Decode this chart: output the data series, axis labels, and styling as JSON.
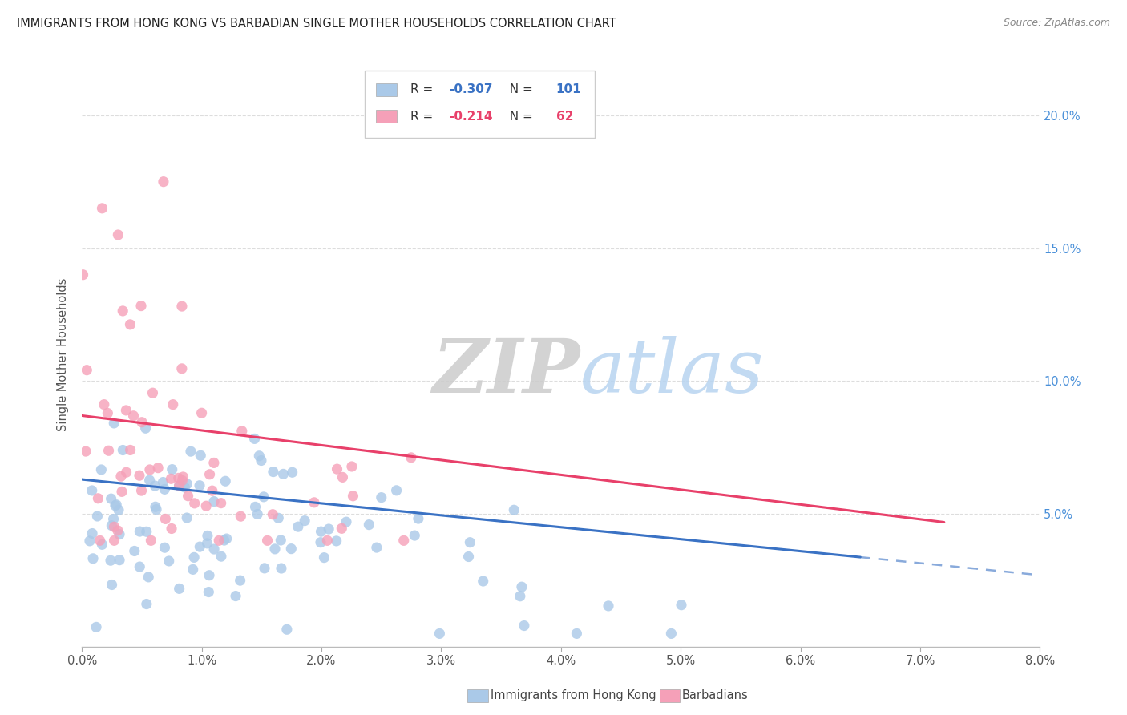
{
  "title": "IMMIGRANTS FROM HONG KONG VS BARBADIAN SINGLE MOTHER HOUSEHOLDS CORRELATION CHART",
  "source": "Source: ZipAtlas.com",
  "ylabel": "Single Mother Households",
  "legend_label1": "Immigrants from Hong Kong",
  "legend_label2": "Barbadians",
  "R1": -0.307,
  "N1": 101,
  "R2": -0.214,
  "N2": 62,
  "color1": "#aac9e8",
  "color2": "#f5a0b8",
  "line_color1": "#3a72c4",
  "line_color2": "#e8406a",
  "ytick_labels": [
    "5.0%",
    "10.0%",
    "15.0%",
    "20.0%"
  ],
  "ytick_values": [
    0.05,
    0.1,
    0.15,
    0.2
  ],
  "xlim": [
    0.0,
    0.08
  ],
  "ylim": [
    0.0,
    0.22
  ],
  "watermark_zip": "ZIP",
  "watermark_atlas": "atlas",
  "background_color": "#ffffff",
  "legend_R1_color": "#3a72c4",
  "legend_R2_color": "#e8406a",
  "legend_N_color": "#3a72c4"
}
